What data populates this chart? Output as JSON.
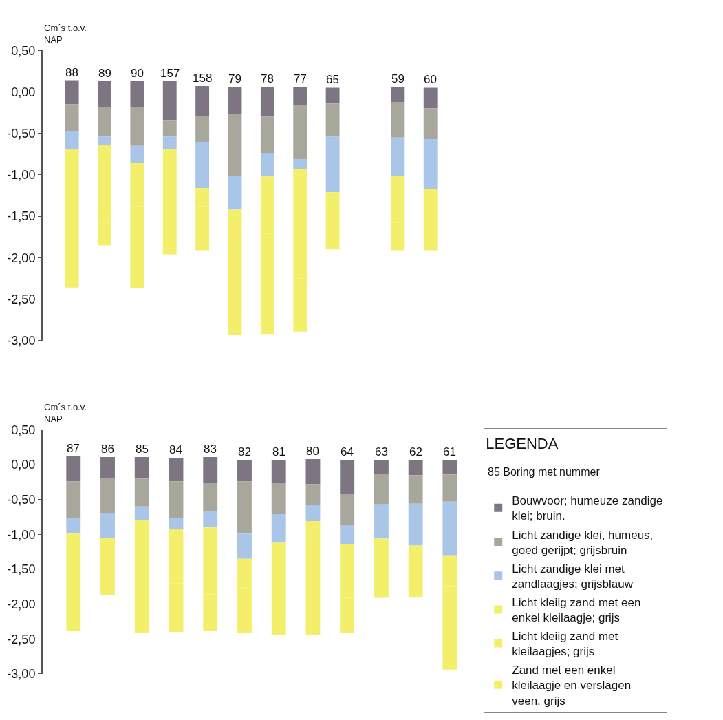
{
  "chart_data": [
    {
      "type": "bar",
      "ylabel": "Cm´s t.o.v.\nNAP",
      "categories": [
        "88",
        "89",
        "90",
        "157",
        "158",
        "79",
        "78",
        "77",
        "65",
        null,
        "59",
        "60"
      ],
      "ylim": [
        -3.0,
        0.5
      ],
      "yticks": [
        {
          "value": 0.5,
          "label": "0,50"
        },
        {
          "value": 0,
          "label": "0,00"
        },
        {
          "value": -0.5,
          "label": "-0,50"
        },
        {
          "value": -1,
          "label": "-1,00"
        },
        {
          "value": -1.5,
          "label": "-1,50"
        },
        {
          "value": -2,
          "label": "-2,00"
        },
        {
          "value": -2.5,
          "label": "-2,50"
        },
        {
          "value": -3,
          "label": "-3,00"
        }
      ],
      "tick_labels": "y",
      "grid": false,
      "series": [
        {
          "color": "#7d7682",
          "base": [
            0.14,
            0.13,
            0.13,
            0.13,
            0.07,
            0.06,
            0.06,
            0.06,
            0.05,
            null,
            0.06,
            0.05
          ],
          "values": [
            -0.29,
            -0.31,
            -0.31,
            -0.48,
            -0.36,
            -0.33,
            -0.36,
            -0.22,
            -0.19,
            null,
            -0.18,
            -0.25
          ]
        },
        {
          "color": "#a8a79b",
          "base": [
            -0.15,
            -0.18,
            -0.18,
            -0.35,
            -0.29,
            -0.27,
            -0.3,
            -0.16,
            -0.14,
            null,
            -0.12,
            -0.2
          ],
          "values": [
            -0.32,
            -0.36,
            -0.47,
            -0.19,
            -0.32,
            -0.74,
            -0.44,
            -0.65,
            -0.4,
            null,
            -0.43,
            -0.37
          ]
        },
        {
          "color": "#a9c6e8",
          "base": [
            -0.47,
            -0.54,
            -0.65,
            -0.54,
            -0.61,
            -1.01,
            -0.74,
            -0.81,
            -0.54,
            null,
            -0.55,
            -0.57
          ],
          "values": [
            -0.22,
            -0.1,
            -0.21,
            -0.15,
            -0.55,
            -0.41,
            -0.28,
            -0.12,
            -0.67,
            null,
            -0.46,
            -0.6
          ]
        },
        {
          "color": "#f4ef6b",
          "base": [
            -0.69,
            -0.64,
            -0.86,
            -0.69,
            -1.16,
            null,
            -1.02,
            -0.93,
            -1.21,
            null,
            -1.01,
            -1.17
          ],
          "values": [
            -1.39,
            -0.94,
            -0.52,
            -0.99,
            -0.22,
            null,
            -0.69,
            -0.76,
            -0.69,
            null,
            -0.57,
            -0.51
          ]
        },
        {
          "color": "#f4ef6b",
          "base": [
            -2.08,
            -1.58,
            -1.38,
            -1.68,
            -1.38,
            -1.42,
            null,
            -1.69,
            null,
            null,
            -1.58,
            -1.68
          ],
          "values": [
            -0.28,
            -0.27,
            -0.99,
            -0.28,
            -0.53,
            -0.31,
            null,
            -0.56,
            null,
            null,
            -0.33,
            -0.23
          ]
        },
        {
          "color": "#f4ef6b",
          "base": [
            null,
            null,
            null,
            null,
            null,
            -1.73,
            -1.71,
            -2.25,
            null,
            null,
            null,
            null
          ],
          "values": [
            null,
            null,
            null,
            null,
            null,
            -1.2,
            -1.21,
            -0.64,
            null,
            null,
            null,
            null
          ]
        }
      ]
    },
    {
      "type": "bar",
      "ylabel": "Cm´s t.o.v.\nNAP",
      "categories": [
        "87",
        "86",
        "85",
        "84",
        "83",
        "82",
        "81",
        "80",
        "64",
        "63",
        "62",
        "61"
      ],
      "ylim": [
        -3.0,
        0.5
      ],
      "yticks": [
        {
          "value": 0.5,
          "label": "0,50"
        },
        {
          "value": 0,
          "label": "0,00"
        },
        {
          "value": -0.5,
          "label": "-0,50"
        },
        {
          "value": -1,
          "label": "-1,00"
        },
        {
          "value": -1.5,
          "label": "-1,50"
        },
        {
          "value": -2,
          "label": "-2,00"
        },
        {
          "value": -2.5,
          "label": "-2,50"
        },
        {
          "value": -3,
          "label": "-3,00"
        }
      ],
      "tick_labels": "y",
      "grid": false,
      "legend": "right",
      "legend_title": "LEGENDA",
      "annotations": [
        "85 Boring met nummer"
      ],
      "series": [
        {
          "name": "Bouwvoor; humeuze zandige klei; bruin.",
          "color": "#7d7682",
          "base": [
            0.12,
            0.11,
            0.11,
            0.1,
            0.11,
            0.07,
            0.07,
            0.08,
            0.07,
            0.07,
            0.07,
            0.07
          ],
          "values": [
            -0.36,
            -0.3,
            -0.31,
            -0.34,
            -0.37,
            -0.31,
            -0.33,
            -0.36,
            -0.49,
            -0.2,
            -0.22,
            -0.21
          ]
        },
        {
          "name": "Licht zandige klei, humeus, goed gerijpt; grijsbruin",
          "color": "#a8a79b",
          "base": [
            -0.24,
            -0.19,
            -0.2,
            -0.24,
            -0.26,
            -0.24,
            -0.26,
            -0.28,
            -0.42,
            -0.13,
            -0.15,
            -0.14
          ],
          "values": [
            -0.52,
            -0.5,
            -0.4,
            -0.52,
            -0.41,
            -0.75,
            -0.45,
            -0.3,
            -0.44,
            -0.44,
            -0.41,
            -0.39
          ]
        },
        {
          "name": "Licht zandige klei met zandlaagjes; grijsblauw",
          "color": "#a9c6e8",
          "base": [
            -0.76,
            -0.69,
            -0.6,
            -0.76,
            -0.67,
            -0.99,
            -0.71,
            -0.58,
            -0.86,
            -0.57,
            -0.56,
            -0.53
          ],
          "values": [
            -0.23,
            -0.36,
            -0.19,
            -0.16,
            -0.23,
            -0.36,
            -0.41,
            -0.23,
            -0.28,
            -0.49,
            -0.6,
            -0.78
          ]
        },
        {
          "name": "Licht kleiig zand met een enkel kleilaagje; grijs",
          "color": "#f4ef6b",
          "base": [
            -0.99,
            -1.05,
            -0.79,
            -0.92,
            -0.9,
            -1.35,
            -1.12,
            -0.81,
            -1.14,
            -1.06,
            -1.16,
            -1.31
          ],
          "values": [
            -0.61,
            -0.82,
            -0.76,
            -0.78,
            -0.96,
            -0.42,
            -0.91,
            -0.93,
            -0.77,
            -0.47,
            -0.44,
            -0.44
          ]
        },
        {
          "name": "Licht kleiig zand met kleilaagjes; grijs",
          "color": "#f4ef6b",
          "base": [
            -1.6,
            null,
            -1.55,
            -1.7,
            -1.86,
            -1.77,
            -2.03,
            -1.74,
            -1.91,
            -1.53,
            -1.6,
            -1.75
          ],
          "values": [
            -0.78,
            null,
            -0.86,
            -0.7,
            -0.53,
            -0.65,
            -0.41,
            -0.7,
            -0.51,
            -0.38,
            -0.3,
            -0.61
          ]
        },
        {
          "name": "Zand met een enkel kleilaagje en verslagen veen, grijs",
          "color": "#f4ef6b",
          "base": [
            null,
            null,
            null,
            null,
            null,
            null,
            null,
            null,
            null,
            null,
            null,
            -2.36
          ],
          "values": [
            null,
            null,
            null,
            null,
            null,
            null,
            null,
            null,
            null,
            null,
            null,
            -0.58
          ]
        }
      ]
    }
  ]
}
